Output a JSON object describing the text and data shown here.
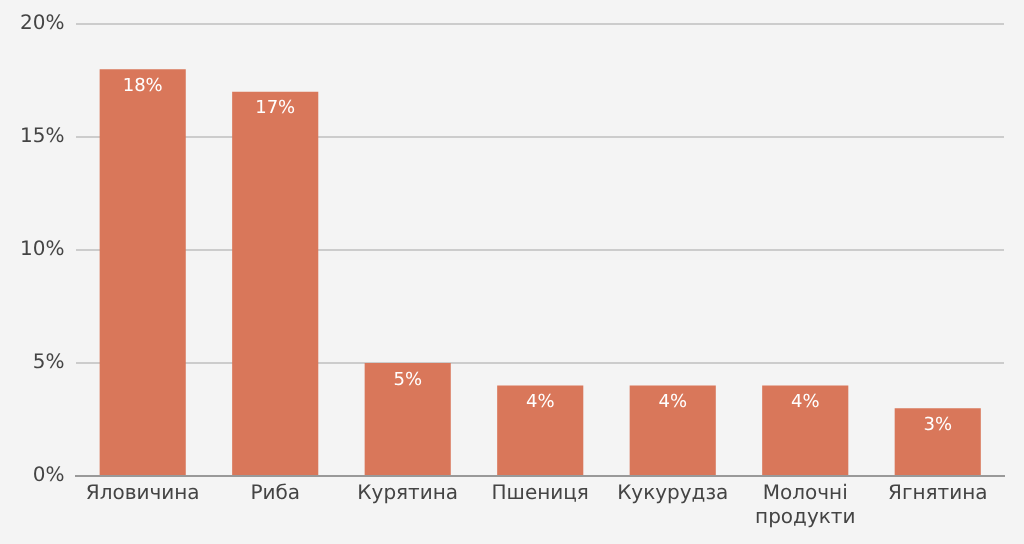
{
  "chart_data": {
    "type": "bar",
    "categories": [
      "Яловичина",
      "Риба",
      "Курятина",
      "Пшениця",
      "Кукурудза",
      "Молочні продукти",
      "Ягнятина"
    ],
    "values": [
      18,
      17,
      5,
      4,
      4,
      4,
      3
    ],
    "color": "#d9775a",
    "value_labels": [
      "18%",
      "17%",
      "5%",
      "4%",
      "4%",
      "4%",
      "3%"
    ],
    "ylim": [
      0,
      20
    ],
    "yticks": [
      {
        "value": 0,
        "label": "0%"
      },
      {
        "value": 5,
        "label": "5%"
      },
      {
        "value": 10,
        "label": "10%"
      },
      {
        "value": 15,
        "label": "15%"
      },
      {
        "value": 20,
        "label": "20%"
      }
    ],
    "grid": "y",
    "legend": false
  }
}
